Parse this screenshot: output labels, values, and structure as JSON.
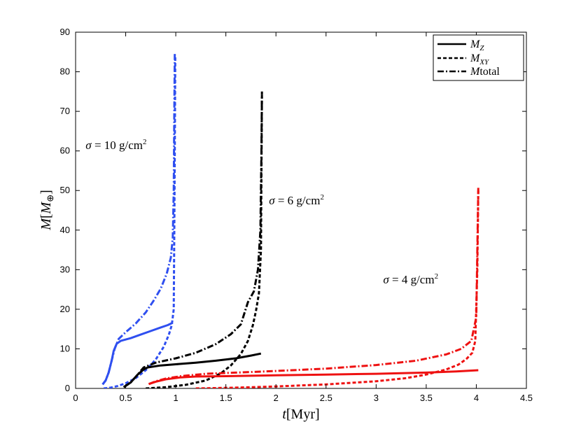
{
  "chart_data": {
    "type": "line",
    "xlabel": {
      "var": "t",
      "unit": "[Myr]"
    },
    "ylabel": {
      "var": "M",
      "unit_open": "[",
      "unit_sym": "M",
      "unit_sub": "⊕",
      "unit_close": "]"
    },
    "xlim": [
      0,
      4.5
    ],
    "ylim": [
      0,
      90
    ],
    "xticks": [
      "0",
      "0.5",
      "1",
      "1.5",
      "2",
      "2.5",
      "3",
      "3.5",
      "4",
      "4.5"
    ],
    "xtick_values": [
      0,
      0.5,
      1,
      1.5,
      2,
      2.5,
      3,
      3.5,
      4,
      4.5
    ],
    "yticks": [
      "0",
      "10",
      "20",
      "30",
      "40",
      "50",
      "60",
      "70",
      "80",
      "90"
    ],
    "ytick_values": [
      0,
      10,
      20,
      30,
      40,
      50,
      60,
      70,
      80,
      90
    ],
    "grid": false,
    "legend_position": "top-right",
    "legend": [
      {
        "style": "solid",
        "main": "M",
        "sub": "Z",
        "rest": ""
      },
      {
        "style": "dashed",
        "main": "M",
        "sub": "XY",
        "rest": ""
      },
      {
        "style": "dashdot",
        "main": "M",
        "sub": "",
        "rest": "total"
      }
    ],
    "annotations": [
      {
        "id": "sigma10",
        "sym": "σ",
        "text": " = 10 g/cm",
        "sup": "2",
        "at": [
          0.1,
          60.5
        ]
      },
      {
        "id": "sigma6",
        "sym": "σ",
        "text": " = 6 g/cm",
        "sup": "2",
        "at": [
          1.93,
          46.5
        ]
      },
      {
        "id": "sigma4",
        "sym": "σ",
        "text": " = 4 g/cm",
        "sup": "2",
        "at": [
          3.07,
          26.5
        ]
      }
    ],
    "series": [
      {
        "name": "sigma10 M_Z",
        "group": "sigma10",
        "color": "#2f4ff0",
        "style": "solid",
        "points": [
          [
            0.27,
            1
          ],
          [
            0.3,
            2
          ],
          [
            0.33,
            4
          ],
          [
            0.36,
            7
          ],
          [
            0.38,
            9.5
          ],
          [
            0.41,
            11.3
          ],
          [
            0.45,
            12
          ],
          [
            0.55,
            12.7
          ],
          [
            0.65,
            13.6
          ],
          [
            0.75,
            14.5
          ],
          [
            0.85,
            15.4
          ],
          [
            0.92,
            16
          ],
          [
            0.97,
            16.6
          ]
        ]
      },
      {
        "name": "sigma10 M_XY",
        "group": "sigma10",
        "color": "#2f4ff0",
        "style": "dashed",
        "points": [
          [
            0.28,
            0
          ],
          [
            0.35,
            0.2
          ],
          [
            0.42,
            0.6
          ],
          [
            0.5,
            1.3
          ],
          [
            0.6,
            2.6
          ],
          [
            0.7,
            4.6
          ],
          [
            0.8,
            7.3
          ],
          [
            0.88,
            10.5
          ],
          [
            0.93,
            13.5
          ],
          [
            0.96,
            16
          ],
          [
            0.98,
            20
          ],
          [
            0.985,
            40
          ],
          [
            0.99,
            60
          ],
          [
            0.995,
            84
          ]
        ]
      },
      {
        "name": "sigma10 M_total",
        "group": "sigma10",
        "color": "#2f4ff0",
        "style": "dashdot",
        "points": [
          [
            0.27,
            1
          ],
          [
            0.3,
            2
          ],
          [
            0.33,
            4
          ],
          [
            0.36,
            7
          ],
          [
            0.39,
            10
          ],
          [
            0.43,
            12.5
          ],
          [
            0.5,
            14.2
          ],
          [
            0.6,
            16.4
          ],
          [
            0.7,
            19.2
          ],
          [
            0.78,
            22.2
          ],
          [
            0.85,
            25.2
          ],
          [
            0.91,
            29
          ],
          [
            0.95,
            33
          ],
          [
            0.97,
            38
          ],
          [
            0.98,
            50
          ],
          [
            0.985,
            70
          ],
          [
            0.99,
            84.5
          ]
        ]
      },
      {
        "name": "sigma6 M_Z",
        "group": "sigma6",
        "color": "#000000",
        "style": "solid",
        "points": [
          [
            0.48,
            0.3
          ],
          [
            0.55,
            1.5
          ],
          [
            0.62,
            3.5
          ],
          [
            0.68,
            4.8
          ],
          [
            0.72,
            5.3
          ],
          [
            0.85,
            5.8
          ],
          [
            1,
            6.1
          ],
          [
            1.2,
            6.5
          ],
          [
            1.4,
            7
          ],
          [
            1.6,
            7.6
          ],
          [
            1.75,
            8.3
          ],
          [
            1.85,
            8.8
          ]
        ]
      },
      {
        "name": "sigma6 M_XY",
        "group": "sigma6",
        "color": "#000000",
        "style": "dashed",
        "points": [
          [
            0.7,
            0
          ],
          [
            0.9,
            0.3
          ],
          [
            1.1,
            0.9
          ],
          [
            1.3,
            2
          ],
          [
            1.45,
            3.8
          ],
          [
            1.55,
            5.8
          ],
          [
            1.65,
            8.7
          ],
          [
            1.72,
            12
          ],
          [
            1.77,
            16
          ],
          [
            1.8,
            19.5
          ],
          [
            1.83,
            24
          ],
          [
            1.85,
            35
          ],
          [
            1.855,
            55
          ],
          [
            1.86,
            74.5
          ]
        ]
      },
      {
        "name": "sigma6 M_total",
        "group": "sigma6",
        "color": "#000000",
        "style": "dashdot",
        "points": [
          [
            0.48,
            0.3
          ],
          [
            0.55,
            1.5
          ],
          [
            0.62,
            3.5
          ],
          [
            0.68,
            5.3
          ],
          [
            0.8,
            6.5
          ],
          [
            1,
            7.6
          ],
          [
            1.2,
            9
          ],
          [
            1.4,
            11.2
          ],
          [
            1.55,
            13.7
          ],
          [
            1.65,
            16.2
          ],
          [
            1.72,
            21.8
          ],
          [
            1.78,
            24.5
          ],
          [
            1.82,
            30
          ],
          [
            1.845,
            40
          ],
          [
            1.855,
            60
          ],
          [
            1.86,
            75
          ]
        ]
      },
      {
        "name": "sigma4 M_Z",
        "group": "sigma4",
        "color": "#ee1111",
        "style": "solid",
        "points": [
          [
            0.73,
            1.1
          ],
          [
            0.8,
            1.7
          ],
          [
            0.9,
            2.3
          ],
          [
            1.05,
            2.8
          ],
          [
            1.2,
            3
          ],
          [
            1.5,
            3.1
          ],
          [
            2,
            3.3
          ],
          [
            2.5,
            3.5
          ],
          [
            3,
            3.7
          ],
          [
            3.5,
            4
          ],
          [
            3.8,
            4.3
          ],
          [
            4.02,
            4.6
          ]
        ]
      },
      {
        "name": "sigma4 M_XY",
        "group": "sigma4",
        "color": "#ee1111",
        "style": "dashed",
        "points": [
          [
            1.2,
            0
          ],
          [
            1.6,
            0.2
          ],
          [
            2,
            0.5
          ],
          [
            2.5,
            1
          ],
          [
            3,
            1.8
          ],
          [
            3.3,
            2.6
          ],
          [
            3.5,
            3.5
          ],
          [
            3.7,
            4.8
          ],
          [
            3.82,
            6
          ],
          [
            3.9,
            7.4
          ],
          [
            3.96,
            9
          ],
          [
            3.99,
            12
          ],
          [
            4.01,
            30
          ],
          [
            4.02,
            50
          ]
        ]
      },
      {
        "name": "sigma4 M_total",
        "group": "sigma4",
        "color": "#ee1111",
        "style": "dashdot",
        "points": [
          [
            0.73,
            1.1
          ],
          [
            0.8,
            1.8
          ],
          [
            0.9,
            2.5
          ],
          [
            1.05,
            3.1
          ],
          [
            1.3,
            3.7
          ],
          [
            1.6,
            4
          ],
          [
            2,
            4.4
          ],
          [
            2.5,
            5
          ],
          [
            3,
            5.9
          ],
          [
            3.4,
            7
          ],
          [
            3.7,
            8.6
          ],
          [
            3.85,
            10
          ],
          [
            3.95,
            12
          ],
          [
            4,
            18
          ],
          [
            4.01,
            35
          ],
          [
            4.02,
            51
          ]
        ]
      }
    ]
  }
}
